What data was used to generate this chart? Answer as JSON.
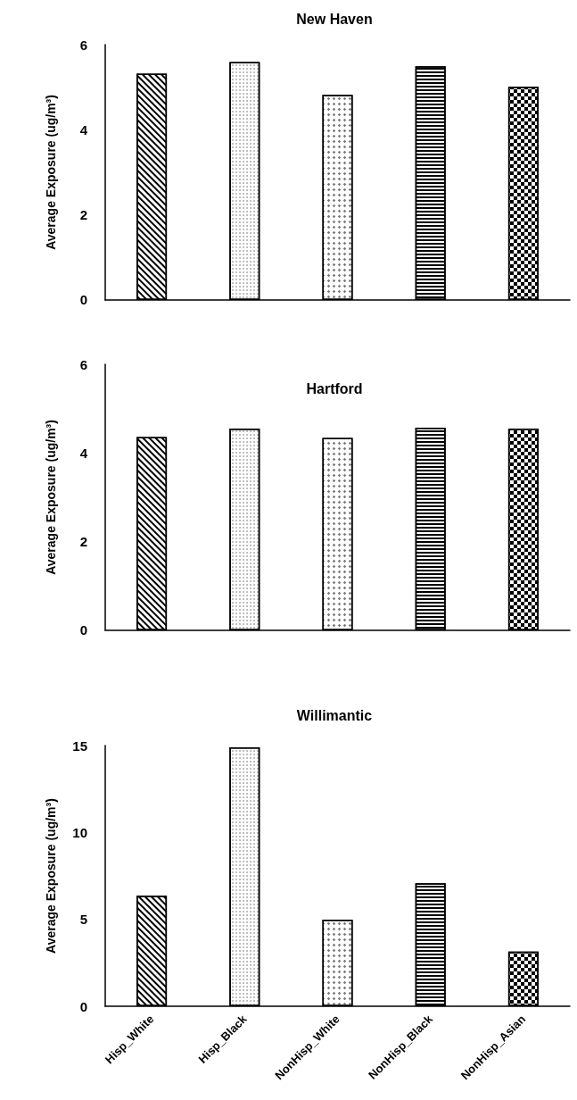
{
  "chart_data": [
    {
      "type": "bar",
      "title": "New Haven",
      "ylabel": "Average Exposure (ug/m³)",
      "categories": [
        null,
        null,
        null,
        null,
        null
      ],
      "values": [
        5.32,
        5.59,
        4.82,
        5.49,
        5.01
      ],
      "colors": [
        "#ffffff",
        "#ffffff",
        "#ffffff",
        "#ffffff",
        "#ffffff"
      ],
      "ylim": [
        0,
        6
      ],
      "yticks": [
        0,
        2,
        4,
        6
      ],
      "grid": false
    },
    {
      "type": "bar",
      "title": "Hartford",
      "ylabel": "Average Exposure (ug/m³)",
      "categories": [
        null,
        null,
        null,
        null,
        null
      ],
      "values": [
        4.36,
        4.55,
        4.34,
        4.57,
        4.55
      ],
      "colors": [
        "#ffffff",
        "#ffffff",
        "#ffffff",
        "#ffffff",
        "#ffffff"
      ],
      "ylim": [
        0,
        6
      ],
      "yticks": [
        0,
        2,
        4,
        6
      ],
      "grid": false
    },
    {
      "type": "bar",
      "title": "Willimantic",
      "ylabel": "Average Exposure (ug/m³)",
      "categories": [
        "Hisp_White",
        "Hisp_Black",
        "NonHisp_White",
        "NonHisp_Black",
        "NonHisp_Asian"
      ],
      "values": [
        6.36,
        14.9,
        4.98,
        7.08,
        3.15
      ],
      "colors": [
        "#ffffff",
        "#ffffff",
        "#ffffff",
        "#ffffff",
        "#ffffff"
      ],
      "ylim": [
        0,
        15
      ],
      "yticks": [
        0,
        5,
        10,
        15
      ],
      "grid": false
    }
  ]
}
